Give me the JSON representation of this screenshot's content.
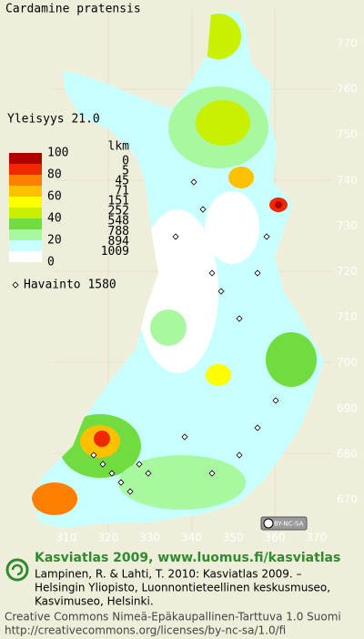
{
  "title": "Cardamine pratensis",
  "frequency": "Yleisyys  21.0",
  "legend": {
    "scale_labels": [
      "100",
      "80",
      "60",
      "40",
      "20",
      "0"
    ],
    "count_header": "lkm",
    "classes": [
      {
        "color": "#b00000",
        "count": "0"
      },
      {
        "color": "#f02800",
        "count": "5"
      },
      {
        "color": "#ff8000",
        "count": "45"
      },
      {
        "color": "#ffc000",
        "count": "71"
      },
      {
        "color": "#ffff00",
        "count": "151"
      },
      {
        "color": "#c8f000",
        "count": "252"
      },
      {
        "color": "#70dc40",
        "count": "548"
      },
      {
        "color": "#a8f8a0",
        "count": "788"
      },
      {
        "color": "#c8ffff",
        "count": "894"
      },
      {
        "color": "#ffffff",
        "count": "1009"
      }
    ]
  },
  "observations": "Havainto 1580",
  "grid_labels": {
    "north": [
      "770",
      "760",
      "750",
      "740",
      "730",
      "720",
      "710",
      "700",
      "690",
      "680",
      "670"
    ],
    "east": [
      "310",
      "320",
      "330",
      "340",
      "350",
      "360",
      "370"
    ]
  },
  "license_badge": "BY-NC-SA",
  "footer": {
    "heading": "Kasviatlas 2009, www.luomus.fi/kasviatlas",
    "citation": [
      "Lampinen, R. & Lahti, T. 2010: Kasviatlas 2009. –",
      "Helsingin Yliopisto, Luonnontieteellinen keskusmuseo,",
      "Kasvimuseo, Helsinki."
    ],
    "license": "Creative Commons Nimeä-Epäkaupallinen-Tarttuva 1.0 Suomi",
    "url": "http://creativecommons.org/licenses/by-nc-sa/1.0/fi"
  }
}
